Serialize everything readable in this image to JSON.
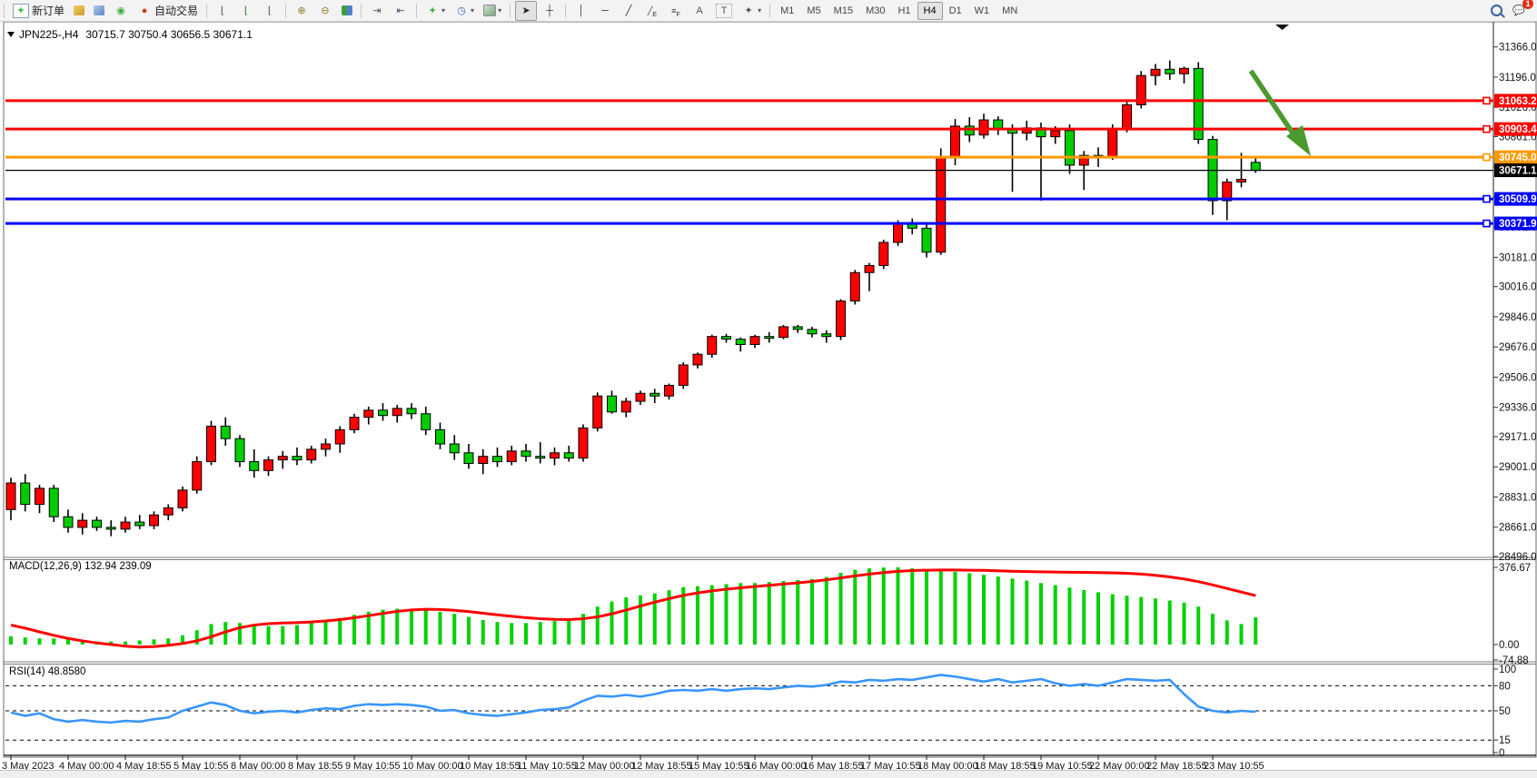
{
  "toolbar": {
    "new_order_label": "新订单",
    "autotrade_label": "自动交易",
    "timeframes": [
      "M1",
      "M5",
      "M15",
      "M30",
      "H1",
      "H4",
      "D1",
      "W1",
      "MN"
    ],
    "active_timeframe": "H4",
    "chat_badge_count": "1",
    "letter_tools": {
      "text": "A",
      "channel": "E",
      "fibo": "F",
      "text_label": "T"
    }
  },
  "chart": {
    "symbol_period": "JPN225-,H4",
    "ohlc_text": "30715.7 30750.4 30656.5 30671.1",
    "macd_label": "MACD(12,26,9) 132.94 239.09",
    "rsi_label": "RSI(14) 48.8580"
  },
  "axes": {
    "price_ticks": [
      31366.0,
      31196.0,
      31026.0,
      30861.0,
      30691.0,
      30521.0,
      30351.0,
      30181.0,
      30016.0,
      29846.0,
      29676.0,
      29506.0,
      29336.0,
      29171.0,
      29001.0,
      28831.0,
      28661.0,
      28496.0
    ],
    "macd_ticks": [
      376.67,
      0.0,
      -74.88
    ],
    "rsi_ticks": [
      100,
      80,
      50,
      15,
      0
    ],
    "rsi_dashed_levels": [
      80,
      50,
      15
    ],
    "time_labels": [
      "3 May 2023",
      "4 May 00:00",
      "4 May 18:55",
      "5 May 10:55",
      "8 May 00:00",
      "8 May 18:55",
      "9 May 10:55",
      "10 May 00:00",
      "10 May 18:55",
      "11 May 10:55",
      "12 May 00:00",
      "12 May 18:55",
      "15 May 10:55",
      "16 May 00:00",
      "16 May 18:55",
      "17 May 10:55",
      "18 May 00:00",
      "18 May 18:55",
      "19 May 10:55",
      "22 May 00:00",
      "22 May 18:55",
      "23 May 10:55"
    ]
  },
  "levels": [
    {
      "price": 31063.2,
      "label": "31063.2",
      "color": "#ff0000",
      "kind": "resistance"
    },
    {
      "price": 30903.4,
      "label": "30903.4",
      "color": "#ff0000",
      "kind": "resistance"
    },
    {
      "price": 30745.0,
      "label": "30745.0",
      "color": "#ff9800",
      "kind": "pivot"
    },
    {
      "price": 30509.9,
      "label": "30509.9",
      "color": "#0000ff",
      "kind": "support"
    },
    {
      "price": 30371.9,
      "label": "30371.9",
      "color": "#0000ff",
      "kind": "support"
    }
  ],
  "bid_line": {
    "price": 30671.1,
    "label": "30671.1",
    "color": "#000000"
  },
  "annotation_arrow": {
    "color": "#4a9a2d",
    "from_price": 31210,
    "to_price": 30760,
    "direction": "down-right"
  },
  "colors": {
    "bull_candle": "#ff0000",
    "bear_candle": "#00cc00",
    "wick": "#000000",
    "macd_histogram": "#00d200",
    "macd_signal": "#ff0000",
    "rsi_line": "#3895ff",
    "axis_text": "#111111",
    "background": "#ffffff"
  },
  "chart_data": {
    "type": "candlestick",
    "symbol": "JPN225-",
    "period": "H4",
    "price_range": [
      28496.0,
      31366.0
    ],
    "macd_range": [
      -74.88,
      376.67
    ],
    "rsi_range": [
      0,
      100
    ],
    "note_color_convention": "red = bullish, green = bearish",
    "candles_ohlc": [
      [
        28760,
        28940,
        28700,
        28910
      ],
      [
        28910,
        28960,
        28750,
        28790
      ],
      [
        28790,
        28900,
        28740,
        28880
      ],
      [
        28880,
        28900,
        28690,
        28720
      ],
      [
        28720,
        28760,
        28630,
        28660
      ],
      [
        28660,
        28740,
        28620,
        28700
      ],
      [
        28700,
        28720,
        28640,
        28660
      ],
      [
        28660,
        28700,
        28610,
        28650
      ],
      [
        28650,
        28720,
        28630,
        28690
      ],
      [
        28690,
        28730,
        28650,
        28670
      ],
      [
        28670,
        28750,
        28650,
        28730
      ],
      [
        28730,
        28790,
        28700,
        28770
      ],
      [
        28770,
        28890,
        28750,
        28870
      ],
      [
        28870,
        29060,
        28850,
        29030
      ],
      [
        29030,
        29260,
        29010,
        29230
      ],
      [
        29230,
        29280,
        29120,
        29160
      ],
      [
        29160,
        29180,
        29000,
        29030
      ],
      [
        29030,
        29100,
        28940,
        28980
      ],
      [
        28980,
        29060,
        28950,
        29040
      ],
      [
        29040,
        29090,
        28990,
        29060
      ],
      [
        29060,
        29110,
        29010,
        29040
      ],
      [
        29040,
        29120,
        29020,
        29100
      ],
      [
        29100,
        29160,
        29060,
        29130
      ],
      [
        29130,
        29230,
        29080,
        29210
      ],
      [
        29210,
        29300,
        29190,
        29280
      ],
      [
        29280,
        29340,
        29240,
        29320
      ],
      [
        29320,
        29360,
        29260,
        29290
      ],
      [
        29290,
        29350,
        29250,
        29330
      ],
      [
        29330,
        29360,
        29270,
        29300
      ],
      [
        29300,
        29340,
        29180,
        29210
      ],
      [
        29210,
        29250,
        29100,
        29130
      ],
      [
        29130,
        29180,
        29040,
        29080
      ],
      [
        29080,
        29130,
        28990,
        29020
      ],
      [
        29020,
        29100,
        28960,
        29060
      ],
      [
        29060,
        29110,
        29000,
        29030
      ],
      [
        29030,
        29120,
        29010,
        29090
      ],
      [
        29090,
        29130,
        29030,
        29060
      ],
      [
        29060,
        29140,
        29020,
        29050
      ],
      [
        29050,
        29110,
        29010,
        29080
      ],
      [
        29080,
        29120,
        29030,
        29050
      ],
      [
        29050,
        29240,
        29030,
        29220
      ],
      [
        29220,
        29420,
        29200,
        29400
      ],
      [
        29400,
        29430,
        29300,
        29310
      ],
      [
        29310,
        29390,
        29280,
        29370
      ],
      [
        29370,
        29430,
        29350,
        29415
      ],
      [
        29415,
        29440,
        29360,
        29400
      ],
      [
        29400,
        29470,
        29380,
        29460
      ],
      [
        29460,
        29590,
        29440,
        29575
      ],
      [
        29575,
        29645,
        29555,
        29635
      ],
      [
        29635,
        29745,
        29615,
        29735
      ],
      [
        29735,
        29750,
        29700,
        29720
      ],
      [
        29720,
        29730,
        29650,
        29690
      ],
      [
        29690,
        29745,
        29670,
        29735
      ],
      [
        29735,
        29760,
        29700,
        29730
      ],
      [
        29730,
        29800,
        29720,
        29790
      ],
      [
        29790,
        29800,
        29755,
        29775
      ],
      [
        29775,
        29790,
        29730,
        29750
      ],
      [
        29750,
        29770,
        29700,
        29735
      ],
      [
        29735,
        29945,
        29715,
        29935
      ],
      [
        29935,
        30110,
        29915,
        30095
      ],
      [
        30095,
        30150,
        29990,
        30135
      ],
      [
        30135,
        30280,
        30115,
        30265
      ],
      [
        30265,
        30390,
        30245,
        30375
      ],
      [
        30375,
        30400,
        30310,
        30345
      ],
      [
        30345,
        30380,
        30180,
        30210
      ],
      [
        30210,
        30795,
        30195,
        30745
      ],
      [
        30745,
        30960,
        30700,
        30920
      ],
      [
        30920,
        30970,
        30830,
        30870
      ],
      [
        30870,
        30990,
        30850,
        30955
      ],
      [
        30955,
        30975,
        30870,
        30905
      ],
      [
        30905,
        30930,
        30550,
        30880
      ],
      [
        30880,
        30950,
        30840,
        30910
      ],
      [
        30910,
        30940,
        30500,
        30860
      ],
      [
        30860,
        30920,
        30820,
        30895
      ],
      [
        30895,
        30930,
        30650,
        30700
      ],
      [
        30700,
        30780,
        30560,
        30755
      ],
      [
        30755,
        30800,
        30690,
        30745
      ],
      [
        30745,
        30930,
        30730,
        30905
      ],
      [
        30905,
        31070,
        30885,
        31040
      ],
      [
        31040,
        31230,
        31020,
        31205
      ],
      [
        31205,
        31270,
        31150,
        31240
      ],
      [
        31240,
        31290,
        31180,
        31215
      ],
      [
        31215,
        31255,
        31160,
        31245
      ],
      [
        31245,
        31280,
        30820,
        30845
      ],
      [
        30845,
        30865,
        30420,
        30500
      ],
      [
        30500,
        30625,
        30390,
        30605
      ],
      [
        30605,
        30770,
        30575,
        30620
      ],
      [
        30716,
        30750,
        30657,
        30671
      ]
    ],
    "macd_histogram": [
      40,
      35,
      30,
      30,
      25,
      20,
      15,
      15,
      15,
      20,
      25,
      30,
      45,
      70,
      100,
      110,
      105,
      95,
      90,
      90,
      95,
      105,
      115,
      130,
      145,
      160,
      170,
      175,
      175,
      170,
      160,
      150,
      135,
      120,
      110,
      105,
      105,
      110,
      115,
      120,
      150,
      185,
      210,
      230,
      240,
      250,
      265,
      280,
      285,
      290,
      295,
      300,
      300,
      305,
      310,
      315,
      320,
      330,
      350,
      365,
      372,
      376,
      377,
      372,
      368,
      362,
      355,
      348,
      340,
      332,
      322,
      312,
      300,
      290,
      278,
      266,
      255,
      246,
      238,
      232,
      225,
      215,
      205,
      185,
      150,
      118,
      100,
      133
    ],
    "macd_signal": [
      95,
      80,
      62,
      45,
      30,
      18,
      8,
      0,
      -8,
      -12,
      -10,
      -4,
      5,
      18,
      38,
      62,
      82,
      95,
      102,
      105,
      107,
      110,
      115,
      122,
      131,
      141,
      152,
      162,
      169,
      172,
      171,
      167,
      161,
      153,
      145,
      138,
      131,
      126,
      123,
      122,
      126,
      135,
      150,
      168,
      188,
      207,
      224,
      240,
      252,
      262,
      270,
      277,
      283,
      289,
      295,
      301,
      308,
      316,
      325,
      335,
      344,
      351,
      357,
      361,
      363,
      364,
      364,
      363,
      362,
      360,
      358,
      356,
      355,
      354,
      353,
      352,
      351,
      350,
      348,
      344,
      338,
      330,
      320,
      307,
      291,
      274,
      256,
      239
    ],
    "rsi": [
      48,
      44,
      47,
      40,
      37,
      39,
      37,
      36,
      38,
      37,
      40,
      42,
      50,
      55,
      60,
      57,
      50,
      47,
      49,
      50,
      48,
      51,
      53,
      52,
      56,
      58,
      57,
      58,
      57,
      55,
      50,
      51,
      47,
      45,
      44,
      46,
      48,
      51,
      52,
      54,
      62,
      68,
      67,
      69,
      67,
      70,
      74,
      75,
      74,
      76,
      74,
      76,
      77,
      76,
      78,
      80,
      79,
      81,
      85,
      84,
      87,
      86,
      88,
      87,
      90,
      93,
      91,
      88,
      85,
      88,
      84,
      86,
      88,
      83,
      80,
      82,
      80,
      84,
      88,
      87,
      86,
      87,
      70,
      55,
      50,
      48,
      50,
      48.86
    ],
    "macd_last_values": {
      "main": 132.94,
      "signal": 239.09
    },
    "rsi_last_value": 48.858
  }
}
